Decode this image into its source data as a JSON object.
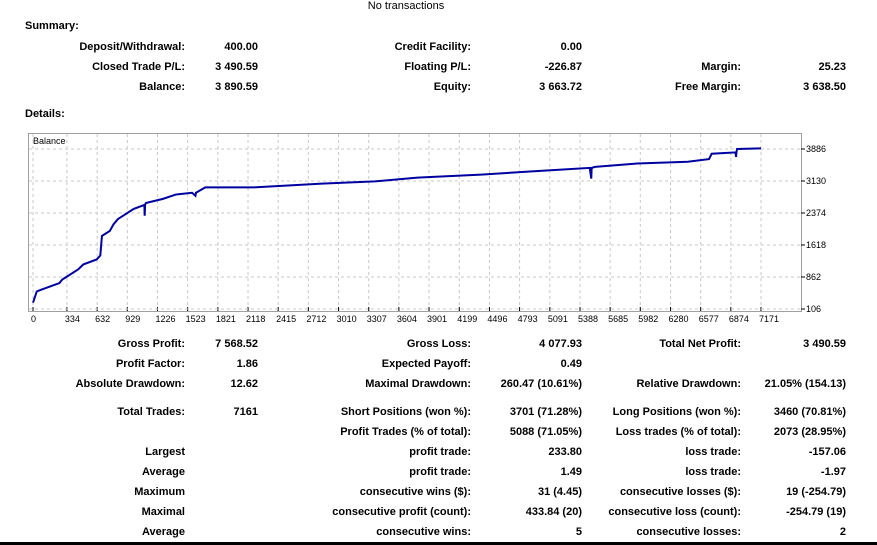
{
  "top_note": "No transactions",
  "summary": {
    "title": "Summary:",
    "rows": [
      [
        {
          "label": "Deposit/Withdrawal:",
          "value": "400.00"
        },
        {
          "label": "Credit Facility:",
          "value": "0.00"
        },
        {
          "label": "",
          "value": ""
        }
      ],
      [
        {
          "label": "Closed Trade P/L:",
          "value": "3 490.59"
        },
        {
          "label": "Floating P/L:",
          "value": "-226.87"
        },
        {
          "label": "Margin:",
          "value": "25.23"
        }
      ],
      [
        {
          "label": "Balance:",
          "value": "3 890.59"
        },
        {
          "label": "Equity:",
          "value": "3 663.72"
        },
        {
          "label": "Free Margin:",
          "value": "3 638.50"
        }
      ]
    ]
  },
  "details": {
    "title": "Details:",
    "rows": [
      [
        {
          "label": "Gross Profit:",
          "value": "7 568.52"
        },
        {
          "label": "Gross Loss:",
          "value": "4 077.93"
        },
        {
          "label": "Total Net Profit:",
          "value": "3 490.59"
        }
      ],
      [
        {
          "label": "Profit Factor:",
          "value": "1.86"
        },
        {
          "label": "Expected Payoff:",
          "value": "0.49"
        },
        {
          "label": "",
          "value": ""
        }
      ],
      [
        {
          "label": "Absolute Drawdown:",
          "value": "12.62"
        },
        {
          "label": "Maximal Drawdown:",
          "value": "260.47 (10.61%)"
        },
        {
          "label": "Relative Drawdown:",
          "value": "21.05% (154.13)"
        }
      ],
      [
        {
          "label": "Total Trades:",
          "value": "7161"
        },
        {
          "label": "Short Positions (won %):",
          "value": "3701 (71.28%)"
        },
        {
          "label": "Long Positions (won %):",
          "value": "3460 (70.81%)"
        }
      ],
      [
        {
          "label": "",
          "value": ""
        },
        {
          "label": "Profit Trades (% of total):",
          "value": "5088 (71.05%)"
        },
        {
          "label": "Loss trades (% of total):",
          "value": "2073 (28.95%)"
        }
      ],
      [
        {
          "label": "Largest",
          "value": ""
        },
        {
          "label": "profit trade:",
          "value": "233.80"
        },
        {
          "label": "loss trade:",
          "value": "-157.06"
        }
      ],
      [
        {
          "label": "Average",
          "value": ""
        },
        {
          "label": "profit trade:",
          "value": "1.49"
        },
        {
          "label": "loss trade:",
          "value": "-1.97"
        }
      ],
      [
        {
          "label": "Maximum",
          "value": ""
        },
        {
          "label": "consecutive wins ($):",
          "value": "31 (4.45)"
        },
        {
          "label": "consecutive losses ($):",
          "value": "19 (-254.79)"
        }
      ],
      [
        {
          "label": "Maximal",
          "value": ""
        },
        {
          "label": "consecutive profit (count):",
          "value": "433.84 (20)"
        },
        {
          "label": "consecutive loss (count):",
          "value": "-254.79 (19)"
        }
      ],
      [
        {
          "label": "Average",
          "value": ""
        },
        {
          "label": "consecutive wins:",
          "value": "5"
        },
        {
          "label": "consecutive losses:",
          "value": "2"
        }
      ]
    ]
  },
  "chart_data": {
    "type": "line",
    "title": "Balance",
    "line_color": "#0000a0",
    "grid": true,
    "xlim": [
      0,
      7171
    ],
    "ylim": [
      106,
      3886
    ],
    "xticks": [
      0,
      334,
      632,
      929,
      1226,
      1523,
      1821,
      2118,
      2415,
      2712,
      3010,
      3307,
      3604,
      3901,
      4199,
      4496,
      4793,
      5091,
      5388,
      5685,
      5982,
      6280,
      6577,
      6874,
      7171
    ],
    "yticks": [
      106,
      862,
      1618,
      2374,
      3130,
      3886
    ],
    "series": [
      {
        "x": [
          0,
          37,
          78,
          261,
          287,
          444,
          496,
          627,
          663,
          679,
          757,
          794,
          836,
          992,
          1097,
          1100,
          1104,
          1112,
          1280,
          1410,
          1567,
          1600,
          1605,
          1697,
          2167,
          2846,
          3368,
          3786,
          4413,
          4935,
          5484,
          5499,
          5503,
          5536,
          5953,
          6450,
          6659,
          6685,
          6920,
          6925,
          6930,
          6935,
          7171
        ],
        "y": [
          255,
          520,
          560,
          720,
          800,
          1040,
          1160,
          1276,
          1370,
          1833,
          1952,
          2110,
          2230,
          2470,
          2565,
          2311,
          2565,
          2610,
          2708,
          2812,
          2851,
          2780,
          2851,
          2979,
          2979,
          3067,
          3120,
          3210,
          3281,
          3360,
          3440,
          3186,
          3440,
          3464,
          3544,
          3584,
          3647,
          3775,
          3806,
          3700,
          3820,
          3886,
          3902
        ]
      }
    ]
  }
}
